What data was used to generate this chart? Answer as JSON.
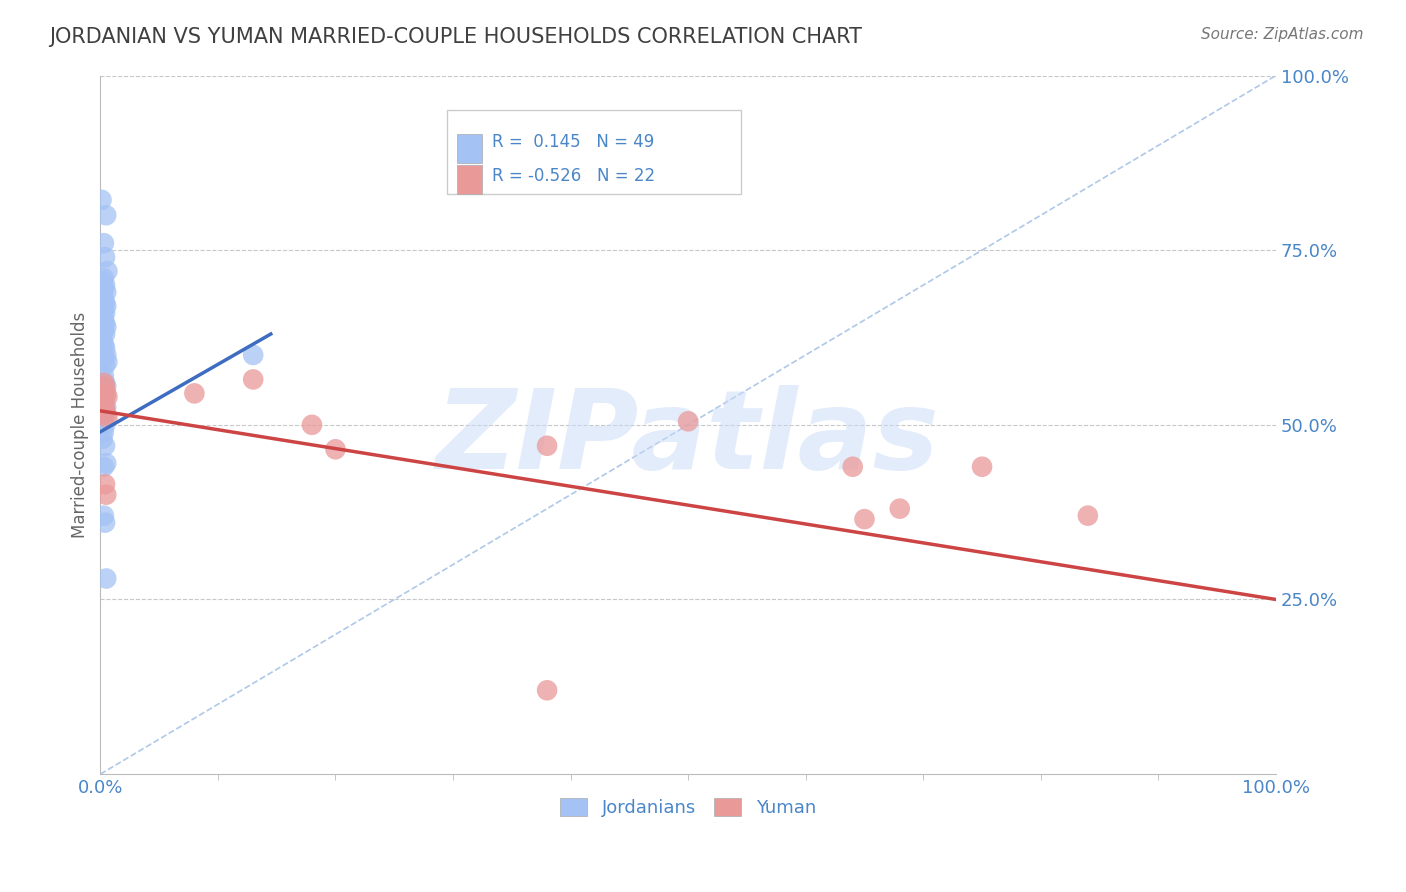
{
  "title": "JORDANIAN VS YUMAN MARRIED-COUPLE HOUSEHOLDS CORRELATION CHART",
  "source": "Source: ZipAtlas.com",
  "ylabel": "Married-couple Households",
  "xlim": [
    0.0,
    1.0
  ],
  "ylim": [
    0.0,
    1.0
  ],
  "ytick_positions": [
    0.25,
    0.5,
    0.75,
    1.0
  ],
  "ytick_labels": [
    "25.0%",
    "50.0%",
    "75.0%",
    "100.0%"
  ],
  "r_jordanian": 0.145,
  "n_jordanian": 49,
  "r_yuman": -0.526,
  "n_yuman": 22,
  "blue_color": "#a4c2f4",
  "blue_line_color": "#3d6cc0",
  "pink_color": "#ea9999",
  "pink_line_color": "#cc4444",
  "text_color": "#4a86c8",
  "title_color": "#404040",
  "dashed_line_color": "#b0c8e8",
  "background_color": "#ffffff",
  "gridline_color": "#c8c8c8",
  "watermark": "ZIPatlas",
  "watermark_color": "#c9daf8",
  "blue_x": [
    0.001,
    0.005,
    0.003,
    0.004,
    0.006,
    0.003,
    0.002,
    0.004,
    0.003,
    0.005,
    0.002,
    0.003,
    0.004,
    0.005,
    0.003,
    0.004,
    0.002,
    0.003,
    0.004,
    0.005,
    0.003,
    0.004,
    0.002,
    0.003,
    0.004,
    0.005,
    0.003,
    0.006,
    0.004,
    0.003,
    0.004,
    0.005,
    0.003,
    0.002,
    0.004,
    0.003,
    0.005,
    0.004,
    0.003,
    0.004,
    0.003,
    0.002,
    0.004,
    0.005,
    0.003,
    0.13,
    0.003,
    0.004,
    0.005
  ],
  "blue_y": [
    0.822,
    0.8,
    0.76,
    0.74,
    0.72,
    0.71,
    0.705,
    0.7,
    0.695,
    0.69,
    0.685,
    0.68,
    0.675,
    0.67,
    0.665,
    0.66,
    0.655,
    0.65,
    0.645,
    0.64,
    0.635,
    0.63,
    0.62,
    0.615,
    0.61,
    0.6,
    0.595,
    0.59,
    0.585,
    0.57,
    0.56,
    0.555,
    0.55,
    0.545,
    0.54,
    0.53,
    0.525,
    0.52,
    0.515,
    0.5,
    0.49,
    0.48,
    0.47,
    0.445,
    0.44,
    0.6,
    0.37,
    0.36,
    0.28
  ],
  "pink_x": [
    0.003,
    0.004,
    0.005,
    0.006,
    0.003,
    0.004,
    0.005,
    0.006,
    0.08,
    0.13,
    0.18,
    0.2,
    0.38,
    0.5,
    0.64,
    0.65,
    0.68,
    0.75,
    0.84,
    0.004,
    0.005,
    0.38
  ],
  "pink_y": [
    0.56,
    0.555,
    0.545,
    0.54,
    0.535,
    0.525,
    0.515,
    0.51,
    0.545,
    0.565,
    0.5,
    0.465,
    0.47,
    0.505,
    0.44,
    0.365,
    0.38,
    0.44,
    0.37,
    0.415,
    0.4,
    0.12
  ],
  "blue_trend": [
    0.0,
    0.145,
    0.49,
    0.63
  ],
  "pink_trend": [
    0.0,
    1.0,
    0.52,
    0.25
  ],
  "diag_line": [
    0.0,
    1.0
  ]
}
